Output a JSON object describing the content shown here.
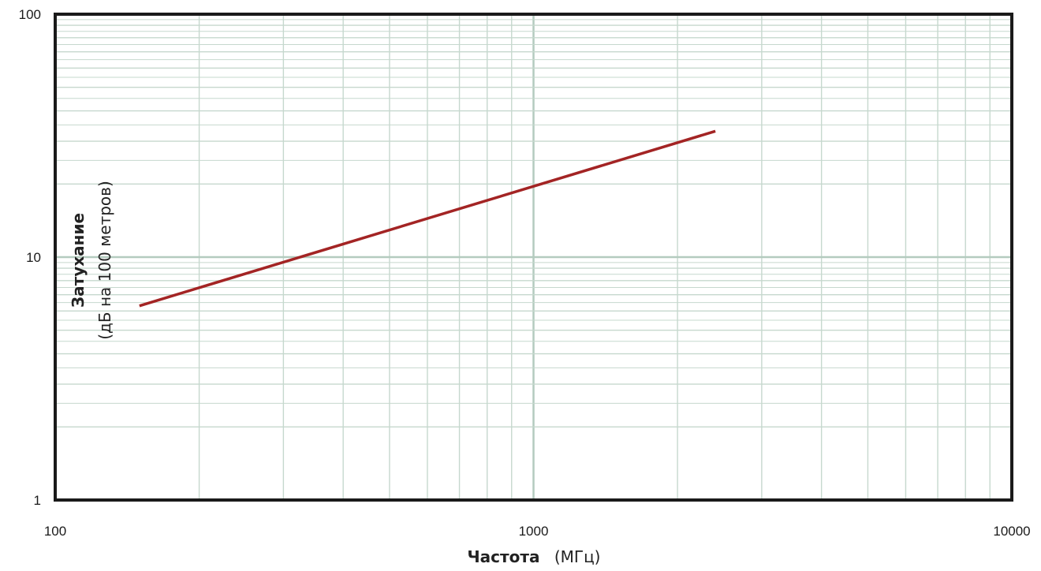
{
  "chart_data": {
    "type": "line",
    "title": "",
    "xscale": "log",
    "yscale": "log",
    "xlim": [
      100,
      10000
    ],
    "ylim": [
      1,
      100
    ],
    "grid": true,
    "x_ticks": [
      "100",
      "1000",
      "10000"
    ],
    "y_ticks": [
      "1",
      "10",
      "100"
    ],
    "xlabel": {
      "bold": "Частота",
      "normal": "(МГц)"
    },
    "ylabel": {
      "bold": "Затухание",
      "normal": "(дБ на 100 метров)"
    },
    "series": [
      {
        "color": "#a32424",
        "x": [
          150,
          2400
        ],
        "y": [
          6.3,
          33
        ]
      }
    ],
    "colors": {
      "grid_major": "#b4cbbf",
      "grid_minor": "#c6d8ce",
      "frame": "#1a1a1a"
    }
  }
}
